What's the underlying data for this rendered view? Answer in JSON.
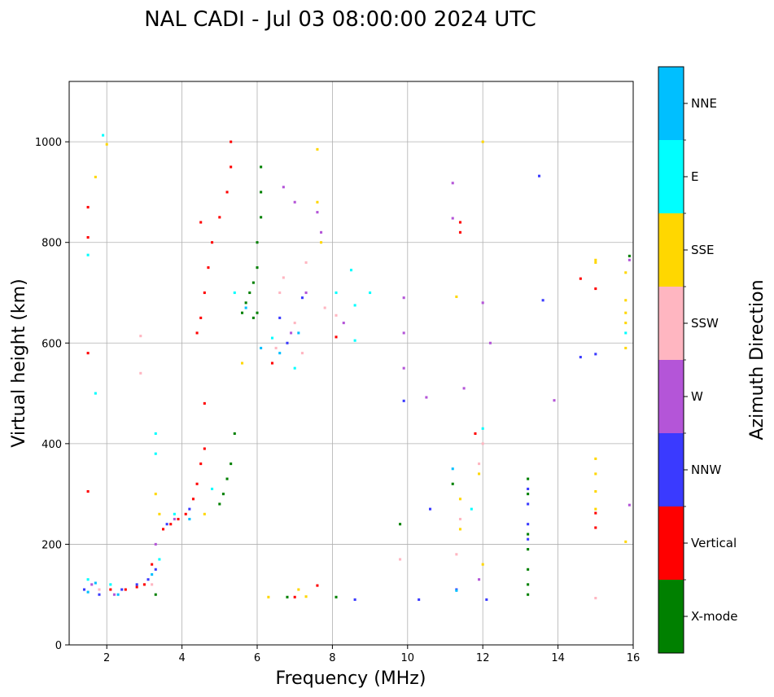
{
  "chart_data": {
    "type": "scatter",
    "title": "NAL CADI - Jul 03 08:00:00 2024 UTC",
    "xlabel": "Frequency (MHz)",
    "ylabel": "Virtual height (km)",
    "xlim": [
      1,
      16
    ],
    "ylim": [
      0,
      1120
    ],
    "xticks": [
      2,
      4,
      6,
      8,
      10,
      12,
      14,
      16
    ],
    "yticks": [
      0,
      200,
      400,
      600,
      800,
      1000
    ],
    "grid": true,
    "colorbar": {
      "title": "Azimuth Direction",
      "categories": [
        {
          "name": "X-mode",
          "color": "#008000"
        },
        {
          "name": "Vertical",
          "color": "#ff0000"
        },
        {
          "name": "NNW",
          "color": "#3a3aff"
        },
        {
          "name": "W",
          "color": "#b455d8"
        },
        {
          "name": "SSW",
          "color": "#ffb6c1"
        },
        {
          "name": "SSE",
          "color": "#ffd700"
        },
        {
          "name": "E",
          "color": "#00ffff"
        },
        {
          "name": "NNE",
          "color": "#00bfff"
        }
      ]
    },
    "cell": {
      "df": 0.06,
      "dh": 5
    },
    "series": [
      {
        "name": "X-mode",
        "color": "#008000",
        "points": [
          [
            3.3,
            100
          ],
          [
            5.0,
            280
          ],
          [
            5.1,
            300
          ],
          [
            5.2,
            330
          ],
          [
            5.3,
            360
          ],
          [
            5.4,
            420
          ],
          [
            5.6,
            660
          ],
          [
            5.7,
            680
          ],
          [
            5.8,
            700
          ],
          [
            5.9,
            720
          ],
          [
            6.0,
            750
          ],
          [
            6.0,
            800
          ],
          [
            6.1,
            850
          ],
          [
            6.1,
            900
          ],
          [
            6.1,
            950
          ],
          [
            6.0,
            660
          ],
          [
            5.9,
            650
          ],
          [
            6.8,
            95
          ],
          [
            8.1,
            95
          ],
          [
            9.8,
            240
          ],
          [
            11.2,
            320
          ],
          [
            13.2,
            100
          ],
          [
            13.2,
            120
          ],
          [
            13.2,
            150
          ],
          [
            13.2,
            190
          ],
          [
            13.2,
            220
          ],
          [
            13.2,
            300
          ],
          [
            13.2,
            330
          ],
          [
            15.9,
            773
          ]
        ]
      },
      {
        "name": "Vertical",
        "color": "#ff0000",
        "points": [
          [
            1.5,
            305
          ],
          [
            1.5,
            580
          ],
          [
            1.5,
            810
          ],
          [
            1.5,
            870
          ],
          [
            2.1,
            110
          ],
          [
            2.5,
            110
          ],
          [
            2.8,
            115
          ],
          [
            3.0,
            120
          ],
          [
            3.2,
            160
          ],
          [
            3.5,
            230
          ],
          [
            3.7,
            240
          ],
          [
            3.9,
            250
          ],
          [
            4.1,
            260
          ],
          [
            4.3,
            290
          ],
          [
            4.4,
            320
          ],
          [
            4.5,
            360
          ],
          [
            4.6,
            390
          ],
          [
            4.6,
            480
          ],
          [
            4.4,
            620
          ],
          [
            4.5,
            650
          ],
          [
            4.6,
            700
          ],
          [
            4.7,
            750
          ],
          [
            4.8,
            800
          ],
          [
            4.5,
            840
          ],
          [
            5.0,
            850
          ],
          [
            5.2,
            900
          ],
          [
            5.3,
            950
          ],
          [
            5.3,
            1000
          ],
          [
            6.4,
            560
          ],
          [
            7.0,
            95
          ],
          [
            7.6,
            118
          ],
          [
            8.1,
            612
          ],
          [
            11.4,
            840
          ],
          [
            11.4,
            820
          ],
          [
            11.8,
            420
          ],
          [
            14.6,
            728
          ],
          [
            15.0,
            262
          ],
          [
            15.0,
            233
          ],
          [
            15.0,
            708
          ]
        ]
      },
      {
        "name": "NNW",
        "color": "#3a3aff",
        "points": [
          [
            1.4,
            110
          ],
          [
            1.8,
            100
          ],
          [
            2.4,
            110
          ],
          [
            2.8,
            120
          ],
          [
            3.1,
            130
          ],
          [
            3.3,
            150
          ],
          [
            3.6,
            240
          ],
          [
            4.2,
            270
          ],
          [
            6.6,
            650
          ],
          [
            6.8,
            600
          ],
          [
            7.2,
            690
          ],
          [
            8.6,
            90
          ],
          [
            9.9,
            485
          ],
          [
            10.3,
            90
          ],
          [
            10.6,
            270
          ],
          [
            11.3,
            110
          ],
          [
            12.1,
            90
          ],
          [
            13.2,
            240
          ],
          [
            13.2,
            210
          ],
          [
            13.2,
            310
          ],
          [
            13.2,
            280
          ],
          [
            13.5,
            932
          ],
          [
            13.6,
            685
          ],
          [
            14.6,
            572
          ],
          [
            15.0,
            578
          ]
        ]
      },
      {
        "name": "W",
        "color": "#b455d8",
        "points": [
          [
            1.6,
            120
          ],
          [
            2.2,
            100
          ],
          [
            3.3,
            200
          ],
          [
            3.8,
            250
          ],
          [
            6.7,
            910
          ],
          [
            6.9,
            620
          ],
          [
            7.0,
            880
          ],
          [
            7.3,
            700
          ],
          [
            7.6,
            860
          ],
          [
            7.7,
            820
          ],
          [
            8.3,
            640
          ],
          [
            9.9,
            550
          ],
          [
            9.9,
            620
          ],
          [
            9.9,
            690
          ],
          [
            10.5,
            492
          ],
          [
            11.2,
            918
          ],
          [
            11.2,
            848
          ],
          [
            11.5,
            510
          ],
          [
            11.9,
            130
          ],
          [
            12.0,
            680
          ],
          [
            12.2,
            600
          ],
          [
            13.9,
            486
          ],
          [
            15.9,
            765
          ],
          [
            15.9,
            278
          ]
        ]
      },
      {
        "name": "SSW",
        "color": "#ffb6c1",
        "points": [
          [
            1.8,
            110
          ],
          [
            2.9,
            540
          ],
          [
            2.9,
            614
          ],
          [
            3.2,
            120
          ],
          [
            6.5,
            590
          ],
          [
            6.6,
            700
          ],
          [
            6.7,
            730
          ],
          [
            7.0,
            640
          ],
          [
            7.2,
            580
          ],
          [
            7.3,
            760
          ],
          [
            7.8,
            670
          ],
          [
            8.1,
            655
          ],
          [
            9.8,
            170
          ],
          [
            11.3,
            180
          ],
          [
            11.4,
            250
          ],
          [
            11.9,
            360
          ],
          [
            12.0,
            400
          ],
          [
            15.0,
            93
          ]
        ]
      },
      {
        "name": "SSE",
        "color": "#ffd700",
        "points": [
          [
            1.7,
            930
          ],
          [
            2.0,
            995
          ],
          [
            3.3,
            300
          ],
          [
            3.4,
            260
          ],
          [
            4.6,
            260
          ],
          [
            5.6,
            560
          ],
          [
            6.3,
            95
          ],
          [
            7.1,
            110
          ],
          [
            7.3,
            96
          ],
          [
            7.6,
            985
          ],
          [
            7.6,
            880
          ],
          [
            7.7,
            800
          ],
          [
            11.3,
            692
          ],
          [
            11.4,
            290
          ],
          [
            11.4,
            230
          ],
          [
            11.9,
            340
          ],
          [
            12.0,
            160
          ],
          [
            12.0,
            1000
          ],
          [
            15.0,
            370
          ],
          [
            15.0,
            340
          ],
          [
            15.0,
            305
          ],
          [
            15.0,
            270
          ],
          [
            15.0,
            765
          ],
          [
            15.0,
            760
          ],
          [
            15.8,
            740
          ],
          [
            15.8,
            685
          ],
          [
            15.8,
            660
          ],
          [
            15.8,
            640
          ],
          [
            15.8,
            590
          ],
          [
            15.8,
            205
          ]
        ]
      },
      {
        "name": "E",
        "color": "#00ffff",
        "points": [
          [
            1.5,
            775
          ],
          [
            1.7,
            500
          ],
          [
            1.9,
            1013
          ],
          [
            1.5,
            130
          ],
          [
            2.1,
            120
          ],
          [
            3.3,
            420
          ],
          [
            3.3,
            380
          ],
          [
            3.4,
            170
          ],
          [
            3.8,
            260
          ],
          [
            4.8,
            310
          ],
          [
            5.4,
            700
          ],
          [
            6.4,
            610
          ],
          [
            7.0,
            550
          ],
          [
            8.1,
            700
          ],
          [
            8.5,
            745
          ],
          [
            8.6,
            605
          ],
          [
            8.6,
            675
          ],
          [
            9.0,
            700
          ],
          [
            11.7,
            270
          ],
          [
            12.0,
            430
          ],
          [
            15.8,
            620
          ]
        ]
      },
      {
        "name": "NNE",
        "color": "#00bfff",
        "points": [
          [
            1.5,
            105
          ],
          [
            1.7,
            123
          ],
          [
            2.3,
            100
          ],
          [
            3.2,
            140
          ],
          [
            4.2,
            250
          ],
          [
            5.7,
            670
          ],
          [
            6.1,
            590
          ],
          [
            6.6,
            580
          ],
          [
            7.1,
            620
          ],
          [
            11.3,
            108
          ],
          [
            11.2,
            350
          ]
        ]
      }
    ]
  }
}
